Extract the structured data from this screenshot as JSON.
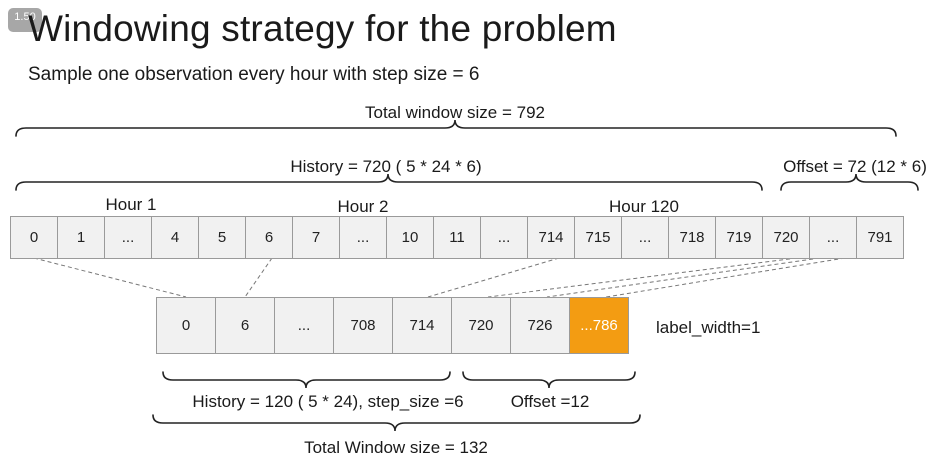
{
  "badge": "1.50",
  "title": "Windowing strategy for the problem",
  "subtitle": "Sample one observation every hour with step size = 6",
  "top": {
    "total_window": "Total window size = 792",
    "history": "History = 720 ( 5 * 24 * 6)",
    "offset": "Offset = 72 (12 * 6)",
    "hour_labels": [
      "Hour 1",
      "Hour 2",
      "Hour 120"
    ],
    "cells": [
      "0",
      "1",
      "...",
      "4",
      "5",
      "6",
      "7",
      "...",
      "10",
      "11",
      "...",
      "714",
      "715",
      "...",
      "718",
      "719",
      "720",
      "...",
      "791"
    ]
  },
  "bottom": {
    "cells": [
      "0",
      "6",
      "...",
      "708",
      "714",
      "720",
      "726",
      "...786"
    ],
    "highlight_color": "#f39c12",
    "label_width": "label_width=1",
    "history": "History = 120 ( 5 * 24), step_size =6",
    "offset": "Offset =12",
    "total_window": "Total Window size = 132"
  }
}
